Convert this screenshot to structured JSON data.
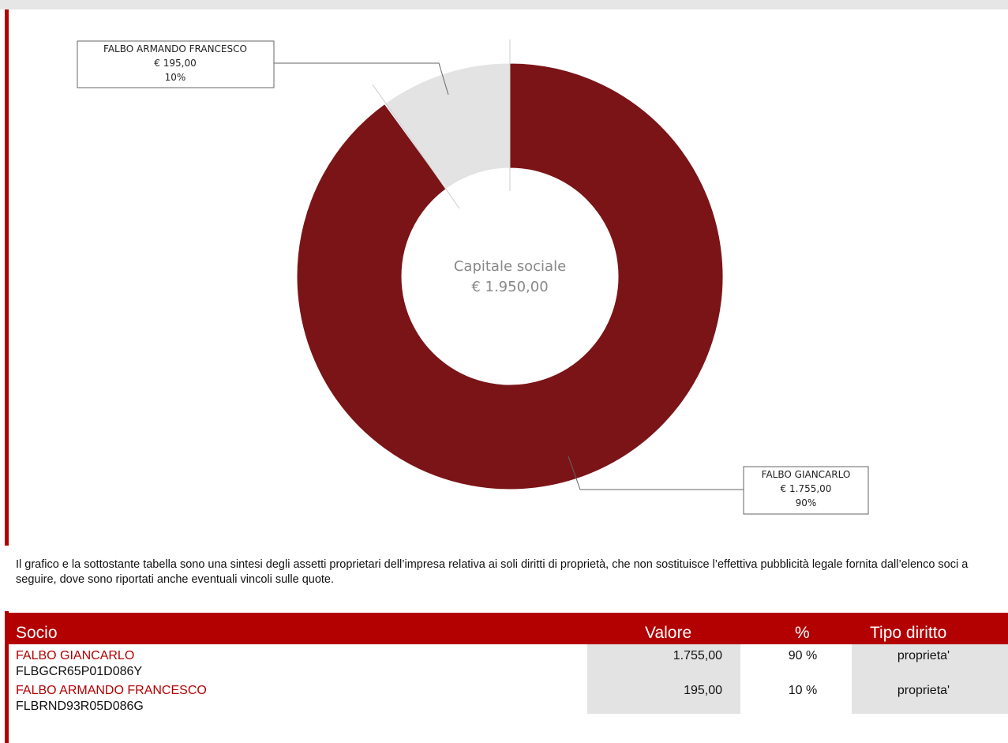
{
  "chart_data": {
    "type": "pie",
    "variant": "donut",
    "center_label": "Capitale sociale",
    "center_value": "€ 1.950,00",
    "total": 1950,
    "slices": [
      {
        "name": "FALBO GIANCARLO",
        "amount_label": "€ 1.755,00",
        "value": 1755,
        "percent_label": "90%",
        "percent": 90,
        "color": "#7b1417"
      },
      {
        "name": "FALBO ARMANDO FRANCESCO",
        "amount_label": "€ 195,00",
        "value": 195,
        "percent_label": "10%",
        "percent": 10,
        "color": "#e3e3e3"
      }
    ]
  },
  "note": "Il grafico e la sottostante tabella sono una sintesi degli assetti proprietari dell’impresa relativa ai soli diritti di proprietà, che non sostituisce l’effettiva pubblicità legale fornita dall’elenco soci a seguire, dove sono riportati anche eventuali vincoli sulle quote.",
  "table": {
    "headers": {
      "socio": "Socio",
      "valore": "Valore",
      "percent": "%",
      "tipo": "Tipo diritto"
    },
    "rows": [
      {
        "name": "FALBO GIANCARLO",
        "cf": "FLBGCR65P01D086Y",
        "valore": "1.755,00",
        "percent": "90 %",
        "tipo": "proprieta'"
      },
      {
        "name": "FALBO ARMANDO FRANCESCO",
        "cf": "FLBRND93R05D086G",
        "valore": "195,00",
        "percent": "10 %",
        "tipo": "proprieta'"
      }
    ]
  },
  "colors": {
    "accent": "#b30000",
    "cell_bg": "#e3e3e3"
  }
}
